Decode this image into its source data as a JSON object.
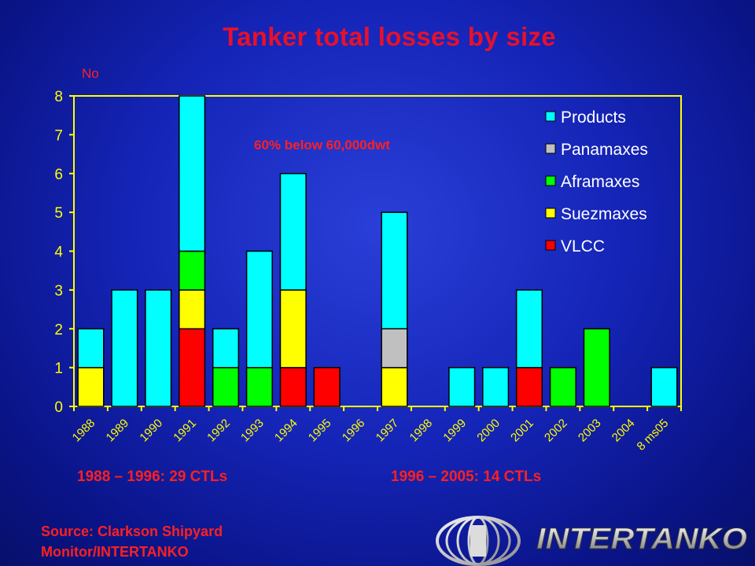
{
  "title": "Tanker total losses by size",
  "notes": {
    "left": "1988 – 1996: 29 CTLs",
    "right": "1996 – 2005: 14 CTLs"
  },
  "source_lines": [
    "Source: Clarkson Shipyard",
    "Monitor/INTERTANKO"
  ],
  "logo_text": "INTERTANKO",
  "colors": {
    "Products": "#00ffff",
    "Panamaxes": "#c0c0c0",
    "Aframaxes": "#00ff00",
    "Suezmaxes": "#ffff00",
    "VLCC": "#ff0000",
    "axis_text": "#ffff00",
    "plot_border": "#ffff00",
    "accent_text": "#ff2020"
  },
  "chart_data": {
    "type": "bar",
    "stacked": true,
    "ylabel": "No",
    "ylim": [
      0,
      8
    ],
    "yticks": [
      0,
      1,
      2,
      3,
      4,
      5,
      6,
      7,
      8
    ],
    "grid": false,
    "legend_position": "top-right",
    "categories": [
      "1988",
      "1989",
      "1990",
      "1991",
      "1992",
      "1993",
      "1994",
      "1995",
      "1996",
      "1997",
      "1998",
      "1999",
      "2000",
      "2001",
      "2002",
      "2003",
      "2004",
      "8 ms05"
    ],
    "series": [
      {
        "name": "VLCC",
        "values": [
          0,
          0,
          0,
          2,
          0,
          0,
          1,
          1,
          0,
          0,
          0,
          0,
          0,
          1,
          0,
          0,
          0,
          0
        ]
      },
      {
        "name": "Suezmaxes",
        "values": [
          1,
          0,
          0,
          1,
          0,
          0,
          2,
          0,
          0,
          1,
          0,
          0,
          0,
          0,
          0,
          0,
          0,
          0
        ]
      },
      {
        "name": "Aframaxes",
        "values": [
          0,
          0,
          0,
          1,
          1,
          1,
          0,
          0,
          0,
          0,
          0,
          0,
          0,
          0,
          1,
          2,
          0,
          0
        ]
      },
      {
        "name": "Panamaxes",
        "values": [
          0,
          0,
          0,
          0,
          0,
          0,
          0,
          0,
          0,
          1,
          0,
          0,
          0,
          0,
          0,
          0,
          0,
          0
        ]
      },
      {
        "name": "Products",
        "values": [
          1,
          3,
          3,
          4,
          1,
          3,
          3,
          0,
          0,
          3,
          0,
          1,
          1,
          2,
          0,
          0,
          0,
          1
        ]
      }
    ],
    "legend_order": [
      "Products",
      "Panamaxes",
      "Aframaxes",
      "Suezmaxes",
      "VLCC"
    ],
    "annotation": "60% below 60,000dwt"
  }
}
